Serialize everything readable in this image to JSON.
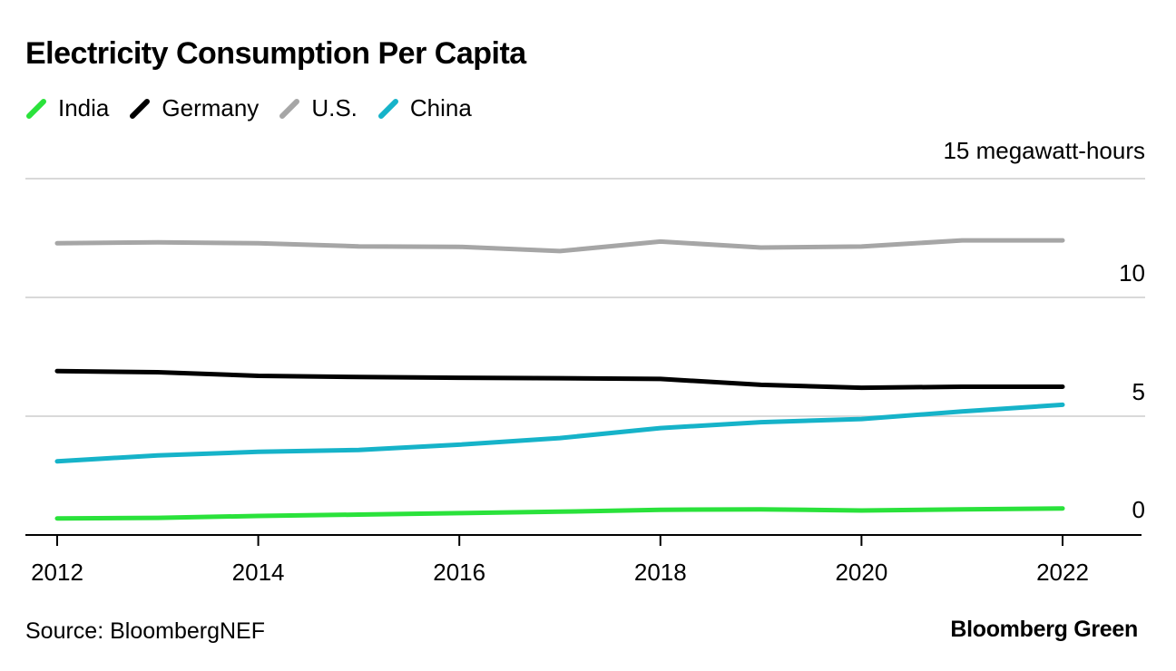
{
  "chart_data": {
    "type": "line",
    "title": "Electricity Consumption Per Capita",
    "unit_label": "15 megawatt-hours",
    "x": [
      2012,
      2013,
      2014,
      2015,
      2016,
      2017,
      2018,
      2019,
      2020,
      2021,
      2022
    ],
    "x_ticks": [
      "2012",
      "2014",
      "2016",
      "2018",
      "2020",
      "2022"
    ],
    "y_ticks": [
      "10",
      "5",
      "0"
    ],
    "ylim": [
      0,
      15
    ],
    "grid": true,
    "legend_position": "top-left",
    "series": [
      {
        "name": "India",
        "color": "#2ae23b",
        "values": [
          0.7,
          0.72,
          0.8,
          0.86,
          0.92,
          0.98,
          1.06,
          1.08,
          1.03,
          1.08,
          1.12
        ]
      },
      {
        "name": "Germany",
        "color": "#000000",
        "values": [
          6.9,
          6.85,
          6.7,
          6.65,
          6.62,
          6.6,
          6.57,
          6.32,
          6.2,
          6.24,
          6.24
        ]
      },
      {
        "name": "U.S.",
        "color": "#a6a6a6",
        "values": [
          12.28,
          12.32,
          12.28,
          12.15,
          12.13,
          11.95,
          12.35,
          12.1,
          12.14,
          12.4,
          12.4
        ]
      },
      {
        "name": "China",
        "color": "#16b3c9",
        "values": [
          3.1,
          3.35,
          3.5,
          3.58,
          3.8,
          4.08,
          4.5,
          4.75,
          4.88,
          5.2,
          5.48
        ]
      }
    ]
  },
  "footer": {
    "source": "Source: BloombergNEF",
    "brand": "Bloomberg Green"
  }
}
